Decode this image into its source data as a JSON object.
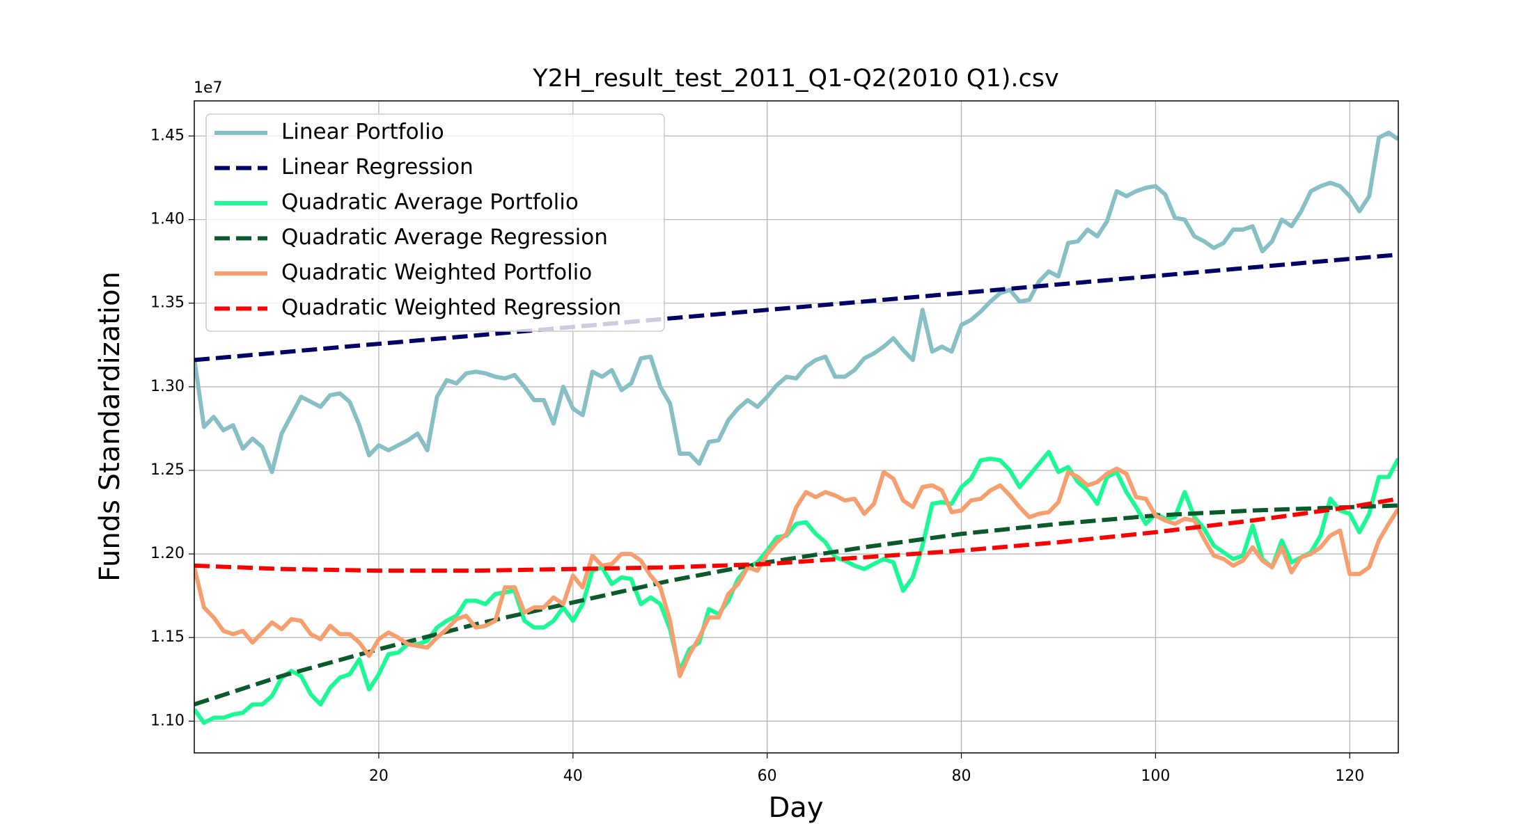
{
  "chart_data": {
    "type": "line",
    "title": "Y2H_result_test_2011_Q1-Q2(2010 Q1).csv",
    "x_label": "Day",
    "y_label": "Funds Standardization",
    "offset_label": "1e7",
    "xlim": [
      1,
      125
    ],
    "ylim": [
      1.081,
      1.471
    ],
    "xticks": [
      20,
      40,
      60,
      80,
      100,
      120
    ],
    "yticks": [
      {
        "value": 1.1,
        "label": "1.10"
      },
      {
        "value": 1.15,
        "label": "1.15"
      },
      {
        "value": 1.2,
        "label": "1.20"
      },
      {
        "value": 1.25,
        "label": "1.25"
      },
      {
        "value": 1.3,
        "label": "1.30"
      },
      {
        "value": 1.35,
        "label": "1.35"
      },
      {
        "value": 1.4,
        "label": "1.40"
      },
      {
        "value": 1.45,
        "label": "1.45"
      }
    ],
    "grid": true,
    "legend": "upper left",
    "x": [
      1,
      2,
      3,
      4,
      5,
      6,
      7,
      8,
      9,
      10,
      11,
      12,
      13,
      14,
      15,
      16,
      17,
      18,
      19,
      20,
      21,
      22,
      23,
      24,
      25,
      26,
      27,
      28,
      29,
      30,
      31,
      32,
      33,
      34,
      35,
      36,
      37,
      38,
      39,
      40,
      41,
      42,
      43,
      44,
      45,
      46,
      47,
      48,
      49,
      50,
      51,
      52,
      53,
      54,
      55,
      56,
      57,
      58,
      59,
      60,
      61,
      62,
      63,
      64,
      65,
      66,
      67,
      68,
      69,
      70,
      71,
      72,
      73,
      74,
      75,
      76,
      77,
      78,
      79,
      80,
      81,
      82,
      83,
      84,
      85,
      86,
      87,
      88,
      89,
      90,
      91,
      92,
      93,
      94,
      95,
      96,
      97,
      98,
      99,
      100,
      101,
      102,
      103,
      104,
      105,
      106,
      107,
      108,
      109,
      110,
      111,
      112,
      113,
      114,
      115,
      116,
      117,
      118,
      119,
      120,
      121,
      122,
      123,
      124,
      125
    ],
    "series": [
      {
        "name": "Linear Portfolio",
        "color": "#86bfc4",
        "dashed": false,
        "values": [
          1.317,
          1.276,
          1.282,
          1.274,
          1.277,
          1.263,
          1.269,
          1.264,
          1.249,
          1.272,
          1.283,
          1.294,
          1.291,
          1.288,
          1.295,
          1.296,
          1.291,
          1.277,
          1.259,
          1.265,
          1.262,
          1.265,
          1.268,
          1.272,
          1.262,
          1.294,
          1.304,
          1.302,
          1.308,
          1.309,
          1.308,
          1.306,
          1.305,
          1.307,
          1.3,
          1.292,
          1.292,
          1.278,
          1.3,
          1.287,
          1.283,
          1.309,
          1.306,
          1.31,
          1.298,
          1.302,
          1.317,
          1.318,
          1.3,
          1.29,
          1.26,
          1.26,
          1.254,
          1.267,
          1.268,
          1.28,
          1.287,
          1.292,
          1.288,
          1.294,
          1.301,
          1.306,
          1.305,
          1.312,
          1.316,
          1.318,
          1.306,
          1.306,
          1.31,
          1.317,
          1.32,
          1.324,
          1.329,
          1.322,
          1.316,
          1.346,
          1.321,
          1.324,
          1.321,
          1.337,
          1.34,
          1.345,
          1.351,
          1.356,
          1.358,
          1.351,
          1.352,
          1.363,
          1.369,
          1.366,
          1.386,
          1.387,
          1.394,
          1.39,
          1.399,
          1.417,
          1.414,
          1.417,
          1.419,
          1.42,
          1.415,
          1.401,
          1.4,
          1.39,
          1.387,
          1.383,
          1.386,
          1.394,
          1.394,
          1.396,
          1.381,
          1.387,
          1.4,
          1.396,
          1.405,
          1.417,
          1.42,
          1.422,
          1.42,
          1.414,
          1.405,
          1.414,
          1.449,
          1.452,
          1.448
        ]
      },
      {
        "name": "Linear Regression",
        "color": "#000066",
        "dashed": true,
        "x": [
          1,
          10,
          20,
          30,
          40,
          50,
          60,
          70,
          80,
          90,
          100,
          110,
          120,
          125
        ],
        "values": [
          1.316,
          1.3206,
          1.3257,
          1.3307,
          1.3358,
          1.3409,
          1.346,
          1.351,
          1.3561,
          1.3612,
          1.3663,
          1.3714,
          1.3765,
          1.379
        ]
      },
      {
        "name": "Quadratic Average Portfolio",
        "color": "#1afa94",
        "dashed": false,
        "values": [
          1.107,
          1.099,
          1.102,
          1.102,
          1.104,
          1.105,
          1.11,
          1.11,
          1.115,
          1.126,
          1.13,
          1.127,
          1.116,
          1.11,
          1.12,
          1.126,
          1.128,
          1.137,
          1.119,
          1.128,
          1.14,
          1.141,
          1.146,
          1.146,
          1.148,
          1.156,
          1.16,
          1.163,
          1.172,
          1.172,
          1.17,
          1.176,
          1.177,
          1.178,
          1.16,
          1.156,
          1.156,
          1.16,
          1.168,
          1.16,
          1.17,
          1.19,
          1.192,
          1.182,
          1.186,
          1.185,
          1.17,
          1.174,
          1.17,
          1.155,
          1.13,
          1.143,
          1.147,
          1.167,
          1.164,
          1.172,
          1.185,
          1.192,
          1.195,
          1.202,
          1.21,
          1.211,
          1.218,
          1.219,
          1.212,
          1.207,
          1.198,
          1.196,
          1.193,
          1.191,
          1.194,
          1.197,
          1.195,
          1.178,
          1.186,
          1.205,
          1.23,
          1.231,
          1.23,
          1.24,
          1.245,
          1.256,
          1.257,
          1.256,
          1.25,
          1.24,
          1.247,
          1.254,
          1.261,
          1.249,
          1.252,
          1.243,
          1.238,
          1.23,
          1.246,
          1.249,
          1.237,
          1.228,
          1.218,
          1.224,
          1.221,
          1.222,
          1.237,
          1.222,
          1.215,
          1.205,
          1.201,
          1.197,
          1.199,
          1.217,
          1.197,
          1.192,
          1.208,
          1.195,
          1.198,
          1.201,
          1.211,
          1.233,
          1.226,
          1.224,
          1.213,
          1.224,
          1.246,
          1.246,
          1.257
        ]
      },
      {
        "name": "Quadratic Average Regression",
        "color": "#0b5a2b",
        "dashed": true,
        "x": [
          1,
          10,
          20,
          30,
          40,
          50,
          60,
          70,
          80,
          90,
          100,
          110,
          120,
          125
        ],
        "values": [
          1.11,
          1.127,
          1.143,
          1.158,
          1.171,
          1.184,
          1.195,
          1.204,
          1.212,
          1.218,
          1.223,
          1.226,
          1.228,
          1.229
        ]
      },
      {
        "name": "Quadratic Weighted Portfolio",
        "color": "#f79e6e",
        "dashed": false,
        "values": [
          1.192,
          1.168,
          1.162,
          1.154,
          1.152,
          1.154,
          1.147,
          1.153,
          1.159,
          1.155,
          1.161,
          1.16,
          1.152,
          1.149,
          1.157,
          1.152,
          1.152,
          1.147,
          1.139,
          1.149,
          1.153,
          1.15,
          1.146,
          1.145,
          1.144,
          1.15,
          1.155,
          1.161,
          1.163,
          1.156,
          1.157,
          1.16,
          1.18,
          1.18,
          1.165,
          1.168,
          1.168,
          1.174,
          1.17,
          1.187,
          1.18,
          1.199,
          1.193,
          1.194,
          1.2,
          1.2,
          1.196,
          1.187,
          1.18,
          1.16,
          1.127,
          1.14,
          1.15,
          1.162,
          1.162,
          1.176,
          1.182,
          1.192,
          1.19,
          1.2,
          1.207,
          1.212,
          1.228,
          1.237,
          1.234,
          1.237,
          1.235,
          1.232,
          1.233,
          1.224,
          1.23,
          1.249,
          1.245,
          1.232,
          1.228,
          1.24,
          1.241,
          1.238,
          1.225,
          1.226,
          1.232,
          1.233,
          1.238,
          1.241,
          1.235,
          1.228,
          1.222,
          1.224,
          1.225,
          1.231,
          1.249,
          1.246,
          1.241,
          1.243,
          1.248,
          1.251,
          1.248,
          1.234,
          1.233,
          1.223,
          1.22,
          1.218,
          1.221,
          1.22,
          1.209,
          1.199,
          1.197,
          1.193,
          1.196,
          1.204,
          1.196,
          1.192,
          1.204,
          1.189,
          1.198,
          1.2,
          1.204,
          1.211,
          1.214,
          1.188,
          1.188,
          1.192,
          1.208,
          1.218,
          1.227
        ]
      },
      {
        "name": "Quadratic Weighted Regression",
        "color": "#ff0000",
        "dashed": true,
        "x": [
          1,
          10,
          20,
          30,
          40,
          50,
          60,
          70,
          80,
          90,
          100,
          110,
          120,
          125
        ],
        "values": [
          1.193,
          1.191,
          1.19,
          1.19,
          1.191,
          1.192,
          1.194,
          1.198,
          1.202,
          1.207,
          1.213,
          1.22,
          1.228,
          1.233
        ]
      }
    ]
  }
}
